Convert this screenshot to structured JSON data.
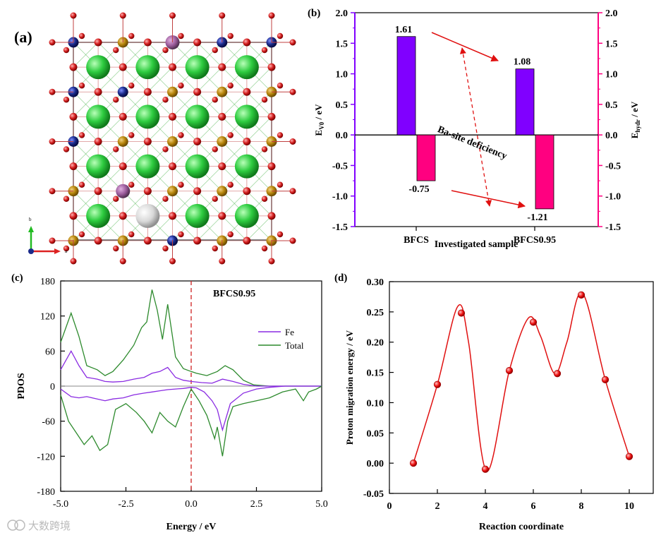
{
  "panels": {
    "a": {
      "label": "(a)",
      "axis_b": "b",
      "axis_a": "a"
    },
    "b": {
      "label": "(b)",
      "annotation": "Ba-site deficiency"
    },
    "c": {
      "label": "(c)"
    },
    "d": {
      "label": "(d)"
    }
  },
  "watermark": "大数跨境",
  "colors": {
    "purple": "#8000ff",
    "magenta": "#ff0080",
    "red": "#e01010",
    "green": "#2d8a2d",
    "fe_line": "#8a2be2",
    "ca_green": "#2ecc40",
    "oxygen": "#d42020",
    "fe_brown": "#b8860b",
    "co_blue": "#1a2a8a",
    "vacancy": "#d8d8d8"
  },
  "chart_data": [
    {
      "id": "b",
      "type": "bar",
      "categories": [
        "BFCS",
        "BFCS0.95"
      ],
      "series": [
        {
          "name": "E_V0",
          "values": [
            1.61,
            1.08
          ],
          "labels": [
            "1.61",
            "1.08"
          ],
          "axis": "left"
        },
        {
          "name": "E_hydr",
          "values": [
            -0.75,
            -1.21
          ],
          "labels": [
            "-0.75",
            "-1.21"
          ],
          "axis": "right"
        }
      ],
      "ylim": [
        -1.5,
        2.0
      ],
      "yticks": [
        "2.0",
        "1.5",
        "1.0",
        "0.5",
        "0.0",
        "-0.5",
        "-1.0",
        "-1.5"
      ],
      "xlabel": "Investigated sample",
      "ylabel_left": "E_V0 / eV",
      "ylabel_right": "E_hydr / eV",
      "ylabel_left_main": "E",
      "ylabel_left_sub": "V0",
      "ylabel_left_unit": " / eV",
      "ylabel_right_main": "E",
      "ylabel_right_sub": "hydr",
      "ylabel_right_unit": " / eV"
    },
    {
      "id": "c",
      "type": "line",
      "title": "BFCS0.95",
      "xlim": [
        -5.0,
        5.0
      ],
      "ylim": [
        -180,
        180
      ],
      "xticks": [
        "-5.0",
        "-2.5",
        "0.0",
        "2.5",
        "5.0"
      ],
      "yticks": [
        "180",
        "120",
        "60",
        "0",
        "-60",
        "-120",
        "-180"
      ],
      "xlabel": "Energy / eV",
      "ylabel": "PDOS",
      "fermi_level": 0.0,
      "legend": [
        "Fe",
        "Total"
      ],
      "series": [
        {
          "name": "Total (spin up)",
          "x": [
            -5.0,
            -4.6,
            -4.3,
            -4.0,
            -3.6,
            -3.3,
            -3.0,
            -2.6,
            -2.2,
            -1.9,
            -1.7,
            -1.5,
            -1.3,
            -1.1,
            -0.9,
            -0.6,
            -0.3,
            0.0,
            0.2,
            0.6,
            1.0,
            1.3,
            1.6,
            2.0,
            2.4,
            3.0,
            3.6,
            4.0,
            4.4,
            4.7,
            5.0
          ],
          "y": [
            75,
            125,
            85,
            35,
            28,
            18,
            25,
            45,
            70,
            100,
            110,
            165,
            130,
            80,
            140,
            50,
            30,
            25,
            22,
            18,
            25,
            35,
            28,
            10,
            2,
            0,
            0,
            0,
            0,
            0,
            0
          ]
        },
        {
          "name": "Fe (spin up)",
          "x": [
            -5.0,
            -4.6,
            -4.3,
            -4.0,
            -3.6,
            -3.3,
            -3.0,
            -2.6,
            -2.2,
            -1.8,
            -1.5,
            -1.2,
            -0.9,
            -0.6,
            -0.3,
            0.0,
            0.4,
            0.8,
            1.2,
            1.6,
            2.0,
            2.5,
            3.0,
            4.0,
            5.0
          ],
          "y": [
            28,
            60,
            35,
            15,
            12,
            8,
            7,
            8,
            12,
            15,
            22,
            25,
            32,
            15,
            10,
            8,
            6,
            5,
            12,
            8,
            3,
            0,
            0,
            0,
            0
          ]
        },
        {
          "name": "Fe (spin down)",
          "x": [
            -5.0,
            -4.6,
            -4.3,
            -4.0,
            -3.6,
            -3.3,
            -3.0,
            -2.6,
            -2.2,
            -1.8,
            -1.5,
            -1.2,
            -0.9,
            -0.6,
            -0.3,
            0.0,
            0.2,
            0.5,
            0.8,
            1.0,
            1.2,
            1.5,
            2.0,
            2.5,
            3.0,
            3.6,
            4.0,
            5.0
          ],
          "y": [
            -5,
            -18,
            -20,
            -18,
            -22,
            -25,
            -22,
            -20,
            -15,
            -12,
            -10,
            -8,
            -6,
            -5,
            -4,
            -2,
            -3,
            -10,
            -25,
            -40,
            -75,
            -30,
            -12,
            -5,
            -2,
            0,
            0,
            0
          ]
        },
        {
          "name": "Total (spin down)",
          "x": [
            -5.0,
            -4.7,
            -4.4,
            -4.1,
            -3.8,
            -3.5,
            -3.2,
            -2.9,
            -2.5,
            -2.1,
            -1.8,
            -1.5,
            -1.2,
            -0.9,
            -0.6,
            -0.3,
            0.0,
            0.3,
            0.6,
            0.9,
            1.0,
            1.2,
            1.4,
            1.6,
            2.0,
            2.5,
            3.0,
            3.5,
            4.0,
            4.3,
            4.5,
            4.8,
            5.0
          ],
          "y": [
            -15,
            -60,
            -80,
            -100,
            -85,
            -110,
            -100,
            -40,
            -30,
            -45,
            -60,
            -80,
            -45,
            -60,
            -70,
            -35,
            -5,
            -25,
            -50,
            -90,
            -70,
            -120,
            -60,
            -35,
            -30,
            -25,
            -20,
            -10,
            -5,
            -25,
            -10,
            -5,
            0
          ]
        }
      ]
    },
    {
      "id": "d",
      "type": "scatter",
      "xlim": [
        0,
        11
      ],
      "ylim": [
        -0.05,
        0.3
      ],
      "xticks": [
        "0",
        "2",
        "4",
        "6",
        "8",
        "10"
      ],
      "yticks": [
        "0.30",
        "0.25",
        "0.20",
        "0.15",
        "0.10",
        "0.05",
        "0.00",
        "-0.05"
      ],
      "xlabel": "Reaction coordinate",
      "ylabel": "Proton migration energy / eV",
      "x": [
        1,
        2,
        3,
        4,
        5,
        6,
        7,
        8,
        9,
        10
      ],
      "y": [
        0.0,
        0.13,
        0.248,
        -0.01,
        0.153,
        0.233,
        0.148,
        0.278,
        0.138,
        0.011
      ]
    }
  ]
}
